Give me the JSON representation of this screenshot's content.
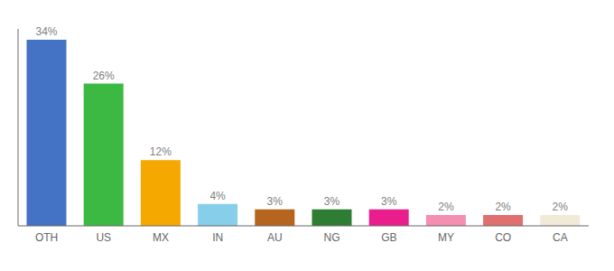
{
  "chart_data": {
    "type": "bar",
    "categories": [
      "OTH",
      "US",
      "MX",
      "IN",
      "AU",
      "NG",
      "GB",
      "MY",
      "CO",
      "CA"
    ],
    "values": [
      34,
      26,
      12,
      4,
      3,
      3,
      3,
      2,
      2,
      2
    ],
    "value_labels": [
      "34%",
      "26%",
      "12%",
      "4%",
      "3%",
      "3%",
      "3%",
      "2%",
      "2%",
      "2%"
    ],
    "data_labels": true,
    "colors": [
      "#4472c4",
      "#3cb943",
      "#f5a800",
      "#87ceeb",
      "#b5651d",
      "#2e7d32",
      "#e91e8c",
      "#f48fb1",
      "#e07070",
      "#f0ead6"
    ],
    "ylim": [
      0,
      36
    ],
    "grid": false,
    "tick_labels": "x"
  }
}
